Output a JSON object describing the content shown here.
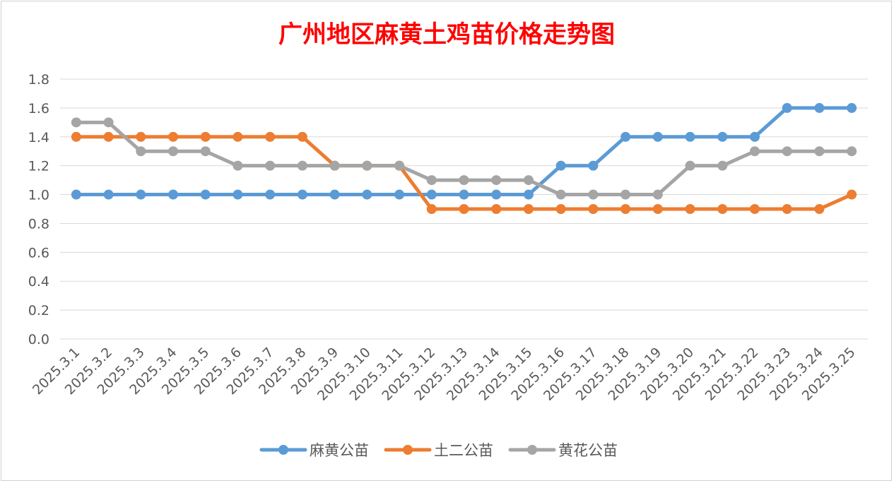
{
  "colors": {
    "title": "#ff0000",
    "grid": "#d9d9d9",
    "tick_text": "#595959",
    "series": [
      "#5b9bd5",
      "#ed7d31",
      "#a5a5a5"
    ]
  },
  "chart_data": {
    "type": "line",
    "title": "广州地区麻黄土鸡苗价格走势图",
    "xlabel": "",
    "ylabel": "",
    "ylim": [
      0,
      1.8
    ],
    "yticks": [
      "0.0",
      "0.2",
      "0.4",
      "0.6",
      "0.8",
      "1.0",
      "1.2",
      "1.4",
      "1.6",
      "1.8"
    ],
    "grid": true,
    "legend_position": "bottom",
    "x": [
      "2025.3.1",
      "2025.3.2",
      "2025.3.3",
      "2025.3.4",
      "2025.3.5",
      "2025.3.6",
      "2025.3.7",
      "2025.3.8",
      "2025.3.9",
      "2025.3.10",
      "2025.3.11",
      "2025.3.12",
      "2025.3.13",
      "2025.3.14",
      "2025.3.15",
      "2025.3.16",
      "2025.3.17",
      "2025.3.18",
      "2025.3.19",
      "2025.3.20",
      "2025.3.21",
      "2025.3.22",
      "2025.3.23",
      "2025.3.24",
      "2025.3.25"
    ],
    "series": [
      {
        "name": "麻黄公苗",
        "values": [
          1.0,
          1.0,
          1.0,
          1.0,
          1.0,
          1.0,
          1.0,
          1.0,
          1.0,
          1.0,
          1.0,
          1.0,
          1.0,
          1.0,
          1.0,
          1.2,
          1.2,
          1.4,
          1.4,
          1.4,
          1.4,
          1.4,
          1.6,
          1.6,
          1.6
        ]
      },
      {
        "name": "土二公苗",
        "values": [
          1.4,
          1.4,
          1.4,
          1.4,
          1.4,
          1.4,
          1.4,
          1.4,
          1.2,
          1.2,
          1.2,
          0.9,
          0.9,
          0.9,
          0.9,
          0.9,
          0.9,
          0.9,
          0.9,
          0.9,
          0.9,
          0.9,
          0.9,
          0.9,
          1.0
        ]
      },
      {
        "name": "黄花公苗",
        "values": [
          1.5,
          1.5,
          1.3,
          1.3,
          1.3,
          1.2,
          1.2,
          1.2,
          1.2,
          1.2,
          1.2,
          1.1,
          1.1,
          1.1,
          1.1,
          1.0,
          1.0,
          1.0,
          1.0,
          1.2,
          1.2,
          1.3,
          1.3,
          1.3,
          1.3
        ]
      }
    ]
  }
}
